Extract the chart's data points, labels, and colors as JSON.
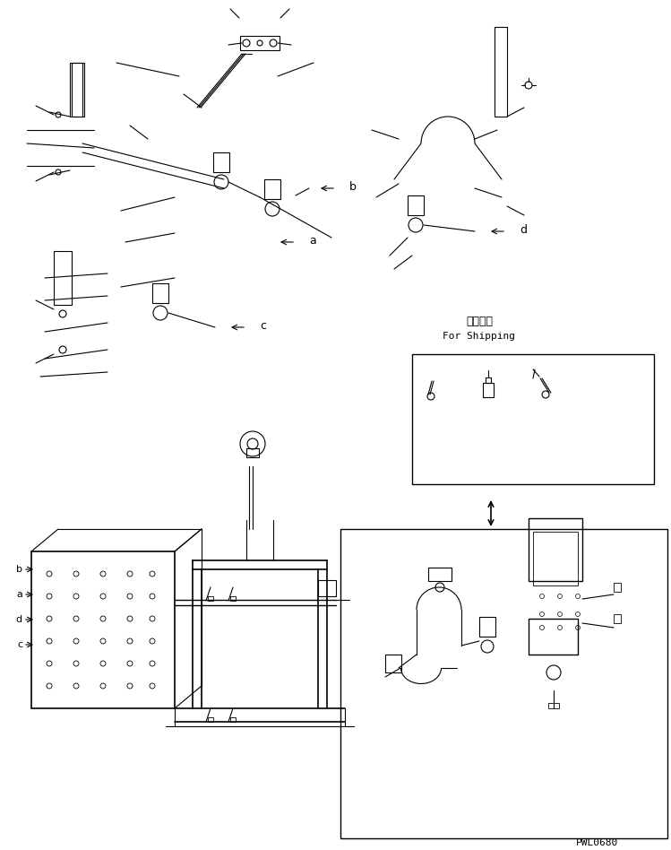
{
  "bg_color": "#ffffff",
  "line_color": "#000000",
  "fig_width": 7.49,
  "fig_height": 9.48,
  "dpi": 100,
  "shipping_label_jp": "運携部品",
  "shipping_label_en": "For Shipping",
  "part_number": "PWL0680",
  "labels": [
    "a",
    "b",
    "c",
    "d"
  ]
}
